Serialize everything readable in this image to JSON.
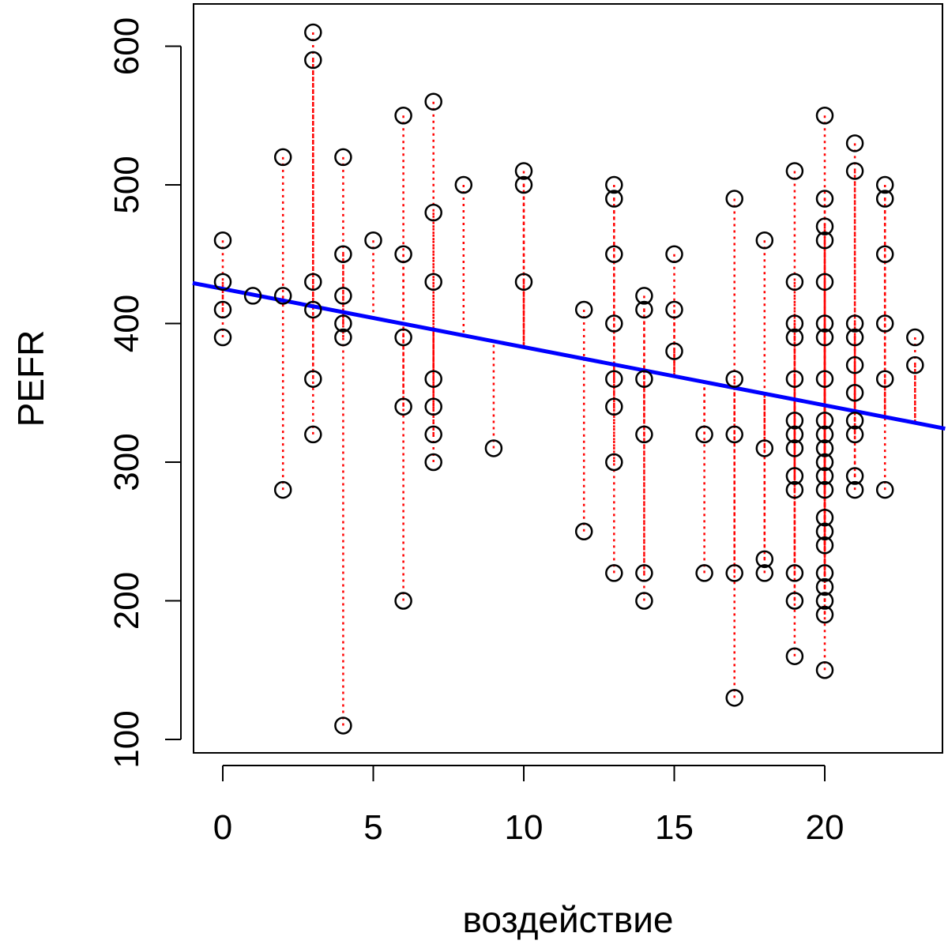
{
  "chart_data": {
    "type": "scatter",
    "title": "",
    "xlabel": "воздействие",
    "ylabel": "PEFR",
    "xlim": [
      -1,
      24
    ],
    "ylim": [
      60,
      630
    ],
    "xticks": [
      0,
      5,
      10,
      15,
      20
    ],
    "yticks": [
      100,
      200,
      300,
      400,
      500,
      600
    ],
    "grid": false,
    "legend": "none",
    "colors": {
      "points": "#000000",
      "regression_line": "#0000ff",
      "residual_lines": "#ff0000",
      "frame": "#000000"
    },
    "regression": {
      "intercept": 425,
      "slope": -4.2
    },
    "points": [
      {
        "x": 0,
        "y": 460
      },
      {
        "x": 0,
        "y": 430
      },
      {
        "x": 0,
        "y": 410
      },
      {
        "x": 0,
        "y": 390
      },
      {
        "x": 1,
        "y": 420
      },
      {
        "x": 2,
        "y": 520
      },
      {
        "x": 2,
        "y": 420
      },
      {
        "x": 2,
        "y": 280
      },
      {
        "x": 3,
        "y": 610
      },
      {
        "x": 3,
        "y": 590
      },
      {
        "x": 3,
        "y": 430
      },
      {
        "x": 3,
        "y": 410
      },
      {
        "x": 3,
        "y": 360
      },
      {
        "x": 3,
        "y": 320
      },
      {
        "x": 4,
        "y": 520
      },
      {
        "x": 4,
        "y": 450
      },
      {
        "x": 4,
        "y": 420
      },
      {
        "x": 4,
        "y": 400
      },
      {
        "x": 4,
        "y": 390
      },
      {
        "x": 4,
        "y": 110
      },
      {
        "x": 5,
        "y": 460
      },
      {
        "x": 6,
        "y": 550
      },
      {
        "x": 6,
        "y": 450
      },
      {
        "x": 6,
        "y": 390
      },
      {
        "x": 6,
        "y": 340
      },
      {
        "x": 6,
        "y": 200
      },
      {
        "x": 7,
        "y": 560
      },
      {
        "x": 7,
        "y": 480
      },
      {
        "x": 7,
        "y": 430
      },
      {
        "x": 7,
        "y": 360
      },
      {
        "x": 7,
        "y": 340
      },
      {
        "x": 7,
        "y": 320
      },
      {
        "x": 7,
        "y": 300
      },
      {
        "x": 8,
        "y": 500
      },
      {
        "x": 9,
        "y": 310
      },
      {
        "x": 10,
        "y": 510
      },
      {
        "x": 10,
        "y": 500
      },
      {
        "x": 10,
        "y": 430
      },
      {
        "x": 12,
        "y": 410
      },
      {
        "x": 12,
        "y": 250
      },
      {
        "x": 13,
        "y": 500
      },
      {
        "x": 13,
        "y": 490
      },
      {
        "x": 13,
        "y": 450
      },
      {
        "x": 13,
        "y": 400
      },
      {
        "x": 13,
        "y": 360
      },
      {
        "x": 13,
        "y": 340
      },
      {
        "x": 13,
        "y": 300
      },
      {
        "x": 13,
        "y": 220
      },
      {
        "x": 14,
        "y": 420
      },
      {
        "x": 14,
        "y": 410
      },
      {
        "x": 14,
        "y": 360
      },
      {
        "x": 14,
        "y": 320
      },
      {
        "x": 14,
        "y": 220
      },
      {
        "x": 14,
        "y": 200
      },
      {
        "x": 15,
        "y": 450
      },
      {
        "x": 15,
        "y": 410
      },
      {
        "x": 15,
        "y": 380
      },
      {
        "x": 16,
        "y": 320
      },
      {
        "x": 16,
        "y": 220
      },
      {
        "x": 17,
        "y": 490
      },
      {
        "x": 17,
        "y": 360
      },
      {
        "x": 17,
        "y": 320
      },
      {
        "x": 17,
        "y": 220
      },
      {
        "x": 17,
        "y": 130
      },
      {
        "x": 18,
        "y": 460
      },
      {
        "x": 18,
        "y": 310
      },
      {
        "x": 18,
        "y": 230
      },
      {
        "x": 18,
        "y": 220
      },
      {
        "x": 19,
        "y": 510
      },
      {
        "x": 19,
        "y": 430
      },
      {
        "x": 19,
        "y": 400
      },
      {
        "x": 19,
        "y": 390
      },
      {
        "x": 19,
        "y": 360
      },
      {
        "x": 19,
        "y": 330
      },
      {
        "x": 19,
        "y": 320
      },
      {
        "x": 19,
        "y": 310
      },
      {
        "x": 19,
        "y": 290
      },
      {
        "x": 19,
        "y": 280
      },
      {
        "x": 19,
        "y": 220
      },
      {
        "x": 19,
        "y": 200
      },
      {
        "x": 19,
        "y": 160
      },
      {
        "x": 20,
        "y": 550
      },
      {
        "x": 20,
        "y": 490
      },
      {
        "x": 20,
        "y": 470
      },
      {
        "x": 20,
        "y": 460
      },
      {
        "x": 20,
        "y": 430
      },
      {
        "x": 20,
        "y": 400
      },
      {
        "x": 20,
        "y": 390
      },
      {
        "x": 20,
        "y": 360
      },
      {
        "x": 20,
        "y": 330
      },
      {
        "x": 20,
        "y": 320
      },
      {
        "x": 20,
        "y": 310
      },
      {
        "x": 20,
        "y": 300
      },
      {
        "x": 20,
        "y": 290
      },
      {
        "x": 20,
        "y": 280
      },
      {
        "x": 20,
        "y": 260
      },
      {
        "x": 20,
        "y": 250
      },
      {
        "x": 20,
        "y": 240
      },
      {
        "x": 20,
        "y": 220
      },
      {
        "x": 20,
        "y": 210
      },
      {
        "x": 20,
        "y": 200
      },
      {
        "x": 20,
        "y": 190
      },
      {
        "x": 20,
        "y": 150
      },
      {
        "x": 21,
        "y": 530
      },
      {
        "x": 21,
        "y": 510
      },
      {
        "x": 21,
        "y": 400
      },
      {
        "x": 21,
        "y": 390
      },
      {
        "x": 21,
        "y": 370
      },
      {
        "x": 21,
        "y": 350
      },
      {
        "x": 21,
        "y": 330
      },
      {
        "x": 21,
        "y": 320
      },
      {
        "x": 21,
        "y": 290
      },
      {
        "x": 21,
        "y": 280
      },
      {
        "x": 22,
        "y": 500
      },
      {
        "x": 22,
        "y": 490
      },
      {
        "x": 22,
        "y": 450
      },
      {
        "x": 22,
        "y": 400
      },
      {
        "x": 22,
        "y": 360
      },
      {
        "x": 22,
        "y": 280
      },
      {
        "x": 23,
        "y": 390
      },
      {
        "x": 23,
        "y": 370
      }
    ]
  }
}
